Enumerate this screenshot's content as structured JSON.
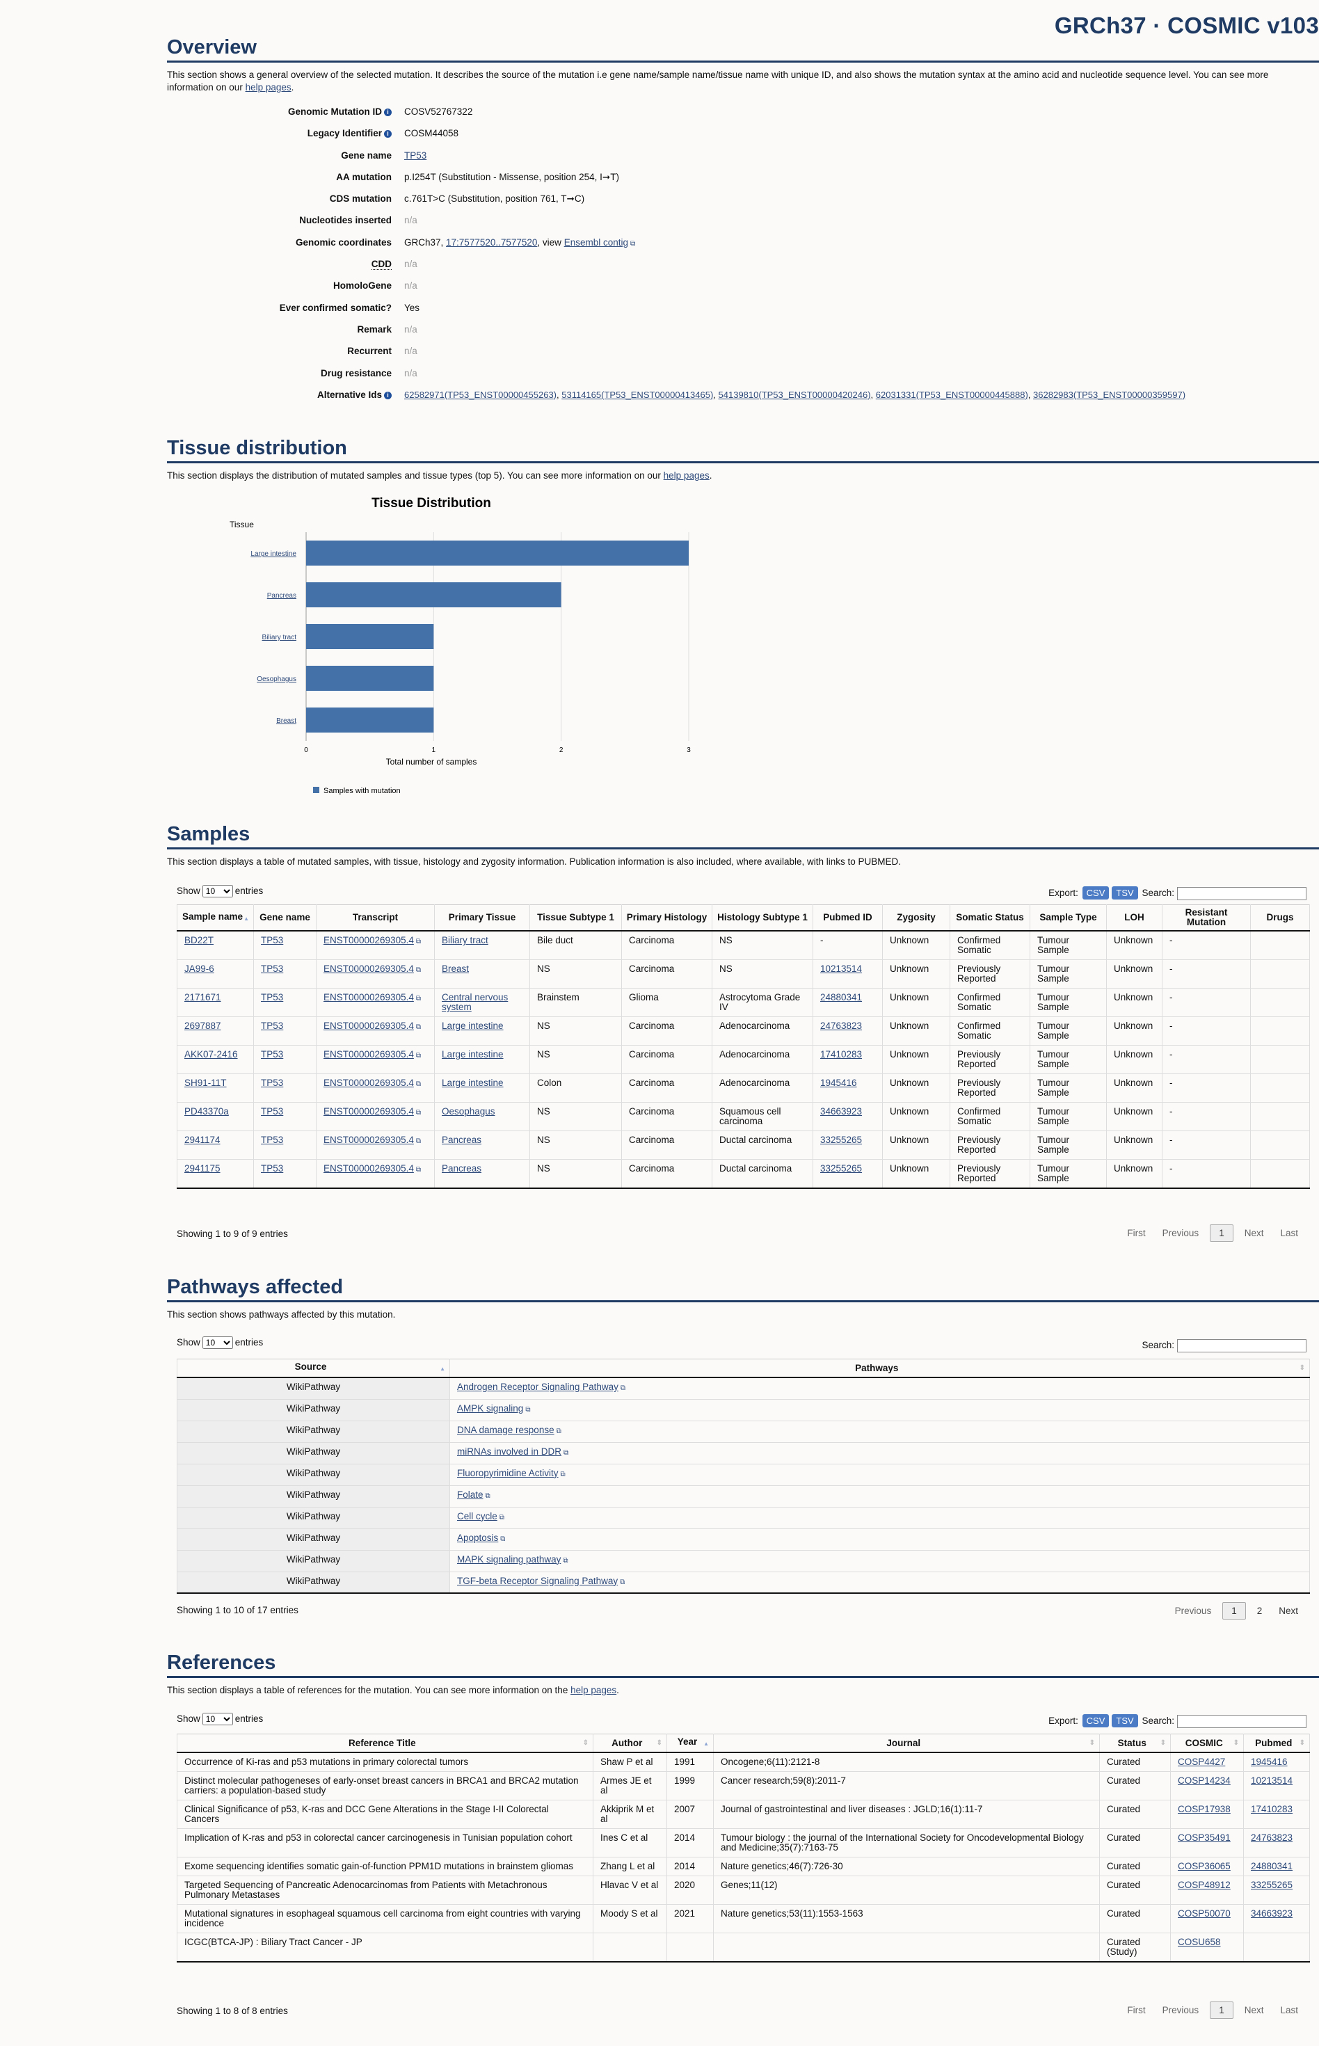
{
  "build_label": "GRCh37 · COSMIC v103",
  "overview": {
    "title": "Overview",
    "description": "This section shows a general overview of the selected mutation. It describes the source of the mutation i.e gene name/sample name/tissue name with unique ID, and also shows the mutation syntax at the amino acid and nucleotide sequence level. You can see more information on our",
    "help_link": "help pages",
    "rows": {
      "genomic_mutation_id": {
        "label": "Genomic Mutation ID",
        "value": "COSV52767322"
      },
      "legacy_identifier": {
        "label": "Legacy Identifier",
        "value": "COSM44058"
      },
      "gene_name": {
        "label": "Gene name",
        "value": "TP53"
      },
      "aa_mutation": {
        "label": "AA mutation",
        "value": "p.I254T (Substitution - Missense, position 254, I➞T)"
      },
      "cds_mutation": {
        "label": "CDS mutation",
        "value": "c.761T>C (Substitution, position 761, T➞C)"
      },
      "nucleotides_inserted": {
        "label": "Nucleotides inserted",
        "value": "n/a"
      },
      "genomic_coordinates": {
        "label": "Genomic coordinates",
        "prefix": "GRCh37, ",
        "coord_link": "17:7577520..7577520",
        "mid": ", view ",
        "ensembl_link": "Ensembl contig"
      },
      "cdd": {
        "label": "CDD",
        "value": "n/a"
      },
      "homologene": {
        "label": "HomoloGene",
        "value": "n/a"
      },
      "ever_confirmed": {
        "label": "Ever confirmed somatic?",
        "value": "Yes"
      },
      "remark": {
        "label": "Remark",
        "value": "n/a"
      },
      "recurrent": {
        "label": "Recurrent",
        "value": "n/a"
      },
      "drug_resistance": {
        "label": "Drug resistance",
        "value": "n/a"
      },
      "alternative_ids": {
        "label": "Alternative Ids",
        "links": [
          "62582971(TP53_ENST00000455263)",
          "53114165(TP53_ENST00000413465)",
          "54139810(TP53_ENST00000420246)",
          "62031331(TP53_ENST00000445888)",
          "36282983(TP53_ENST00000359597)"
        ]
      }
    }
  },
  "tissue": {
    "title": "Tissue distribution",
    "description": "This section displays the distribution of mutated samples and tissue types (top 5). You can see more information on our",
    "help_link": "help pages"
  },
  "chart_data": {
    "type": "bar",
    "orientation": "horizontal",
    "title": "Tissue Distribution",
    "ylabel": "Tissue",
    "xlabel": "Total number of samples",
    "categories": [
      "Large intestine",
      "Pancreas",
      "Biliary tract",
      "Oesophagus",
      "Breast"
    ],
    "series": [
      {
        "name": "Samples with mutation",
        "values": [
          3,
          2,
          1,
          1,
          1
        ]
      }
    ],
    "xlim": [
      0,
      3
    ],
    "xticks": [
      "0",
      "1",
      "2",
      "3"
    ],
    "grid": true,
    "legend_position": "bottom-left",
    "bar_color": "#4571a9"
  },
  "samples": {
    "title": "Samples",
    "description": "This section displays a table of mutated samples, with tissue, histology and zygosity information. Publication information is also included, where available, with links to PUBMED.",
    "show_label": "Show",
    "entries_label": "entries",
    "page_size": "10",
    "export_label": "Export:",
    "csv": "CSV",
    "tsv": "TSV",
    "search_label": "Search:",
    "columns": [
      "Sample name",
      "Gene name",
      "Transcript",
      "Primary Tissue",
      "Tissue Subtype 1",
      "Primary Histology",
      "Histology Subtype 1",
      "Pubmed ID",
      "Zygosity",
      "Somatic Status",
      "Sample Type",
      "LOH",
      "Resistant Mutation",
      "Drugs"
    ],
    "rows": [
      [
        "BD22T",
        "TP53",
        "ENST00000269305.4",
        "Biliary tract",
        "Bile duct",
        "Carcinoma",
        "NS",
        "-",
        "Unknown",
        "Confirmed Somatic",
        "Tumour Sample",
        "Unknown",
        "-",
        ""
      ],
      [
        "JA99-6",
        "TP53",
        "ENST00000269305.4",
        "Breast",
        "NS",
        "Carcinoma",
        "NS",
        "10213514",
        "Unknown",
        "Previously Reported",
        "Tumour Sample",
        "Unknown",
        "-",
        ""
      ],
      [
        "2171671",
        "TP53",
        "ENST00000269305.4",
        "Central nervous system",
        "Brainstem",
        "Glioma",
        "Astrocytoma Grade IV",
        "24880341",
        "Unknown",
        "Confirmed Somatic",
        "Tumour Sample",
        "Unknown",
        "-",
        ""
      ],
      [
        "2697887",
        "TP53",
        "ENST00000269305.4",
        "Large intestine",
        "NS",
        "Carcinoma",
        "Adenocarcinoma",
        "24763823",
        "Unknown",
        "Confirmed Somatic",
        "Tumour Sample",
        "Unknown",
        "-",
        ""
      ],
      [
        "AKK07-2416",
        "TP53",
        "ENST00000269305.4",
        "Large intestine",
        "NS",
        "Carcinoma",
        "Adenocarcinoma",
        "17410283",
        "Unknown",
        "Previously Reported",
        "Tumour Sample",
        "Unknown",
        "-",
        ""
      ],
      [
        "SH91-11T",
        "TP53",
        "ENST00000269305.4",
        "Large intestine",
        "Colon",
        "Carcinoma",
        "Adenocarcinoma",
        "1945416",
        "Unknown",
        "Previously Reported",
        "Tumour Sample",
        "Unknown",
        "-",
        ""
      ],
      [
        "PD43370a",
        "TP53",
        "ENST00000269305.4",
        "Oesophagus",
        "NS",
        "Carcinoma",
        "Squamous cell carcinoma",
        "34663923",
        "Unknown",
        "Confirmed Somatic",
        "Tumour Sample",
        "Unknown",
        "-",
        ""
      ],
      [
        "2941174",
        "TP53",
        "ENST00000269305.4",
        "Pancreas",
        "NS",
        "Carcinoma",
        "Ductal carcinoma",
        "33255265",
        "Unknown",
        "Previously Reported",
        "Tumour Sample",
        "Unknown",
        "-",
        ""
      ],
      [
        "2941175",
        "TP53",
        "ENST00000269305.4",
        "Pancreas",
        "NS",
        "Carcinoma",
        "Ductal carcinoma",
        "33255265",
        "Unknown",
        "Previously Reported",
        "Tumour Sample",
        "Unknown",
        "-",
        ""
      ]
    ],
    "info": "Showing 1 to 9 of 9 entries",
    "pager": {
      "first": "First",
      "previous": "Previous",
      "current": "1",
      "next": "Next",
      "last": "Last"
    }
  },
  "pathways": {
    "title": "Pathways affected",
    "description": "This section shows pathways affected by this mutation.",
    "show_label": "Show",
    "entries_label": "entries",
    "page_size": "10",
    "search_label": "Search:",
    "columns": [
      "Source",
      "Pathways"
    ],
    "rows": [
      [
        "WikiPathway",
        "Androgen Receptor Signaling Pathway"
      ],
      [
        "WikiPathway",
        "AMPK signaling"
      ],
      [
        "WikiPathway",
        "DNA damage response"
      ],
      [
        "WikiPathway",
        "miRNAs involved in DDR"
      ],
      [
        "WikiPathway",
        "Fluoropyrimidine Activity"
      ],
      [
        "WikiPathway",
        "Folate"
      ],
      [
        "WikiPathway",
        "Cell cycle"
      ],
      [
        "WikiPathway",
        "Apoptosis"
      ],
      [
        "WikiPathway",
        "MAPK signaling pathway"
      ],
      [
        "WikiPathway",
        "TGF-beta Receptor Signaling Pathway"
      ]
    ],
    "info": "Showing 1 to 10 of 17 entries",
    "pager": {
      "previous": "Previous",
      "current": "1",
      "page2": "2",
      "next": "Next"
    }
  },
  "references": {
    "title": "References",
    "description": "This section displays a table of references for the mutation. You can see more information on the",
    "help_link": "help pages",
    "show_label": "Show",
    "entries_label": "entries",
    "page_size": "10",
    "export_label": "Export:",
    "csv": "CSV",
    "tsv": "TSV",
    "search_label": "Search:",
    "columns": [
      "Reference Title",
      "Author",
      "Year",
      "Journal",
      "Status",
      "COSMIC",
      "Pubmed"
    ],
    "rows": [
      [
        "Occurrence of Ki-ras and p53 mutations in primary colorectal tumors",
        "Shaw P et al",
        "1991",
        "Oncogene;6(11):2121-8",
        "Curated",
        "COSP4427",
        "1945416"
      ],
      [
        "Distinct molecular pathogeneses of early-onset breast cancers in BRCA1 and BRCA2 mutation carriers: a population-based study",
        "Armes JE et al",
        "1999",
        "Cancer research;59(8):2011-7",
        "Curated",
        "COSP14234",
        "10213514"
      ],
      [
        "Clinical Significance of p53, K-ras and DCC Gene Alterations in the Stage I-II Colorectal Cancers",
        "Akkiprik M et al",
        "2007",
        "Journal of gastrointestinal and liver diseases : JGLD;16(1):11-7",
        "Curated",
        "COSP17938",
        "17410283"
      ],
      [
        "Implication of K-ras and p53 in colorectal cancer carcinogenesis in Tunisian population cohort",
        "Ines C et al",
        "2014",
        "Tumour biology : the journal of the International Society for Oncodevelopmental Biology and Medicine;35(7):7163-75",
        "Curated",
        "COSP35491",
        "24763823"
      ],
      [
        "Exome sequencing identifies somatic gain-of-function PPM1D mutations in brainstem gliomas",
        "Zhang L et al",
        "2014",
        "Nature genetics;46(7):726-30",
        "Curated",
        "COSP36065",
        "24880341"
      ],
      [
        "Targeted Sequencing of Pancreatic Adenocarcinomas from Patients with Metachronous Pulmonary Metastases",
        "Hlavac V et al",
        "2020",
        "Genes;11(12)",
        "Curated",
        "COSP48912",
        "33255265"
      ],
      [
        "Mutational signatures in esophageal squamous cell carcinoma from eight countries with varying incidence",
        "Moody S et al",
        "2021",
        "Nature genetics;53(11):1553-1563",
        "Curated",
        "COSP50070",
        "34663923"
      ],
      [
        "ICGC(BTCA-JP) : Biliary Tract Cancer - JP",
        "",
        "",
        "",
        "Curated (Study)",
        "COSU658",
        ""
      ]
    ],
    "info": "Showing 1 to 8 of 8 entries",
    "pager": {
      "first": "First",
      "previous": "Previous",
      "current": "1",
      "next": "Next",
      "last": "Last"
    }
  }
}
